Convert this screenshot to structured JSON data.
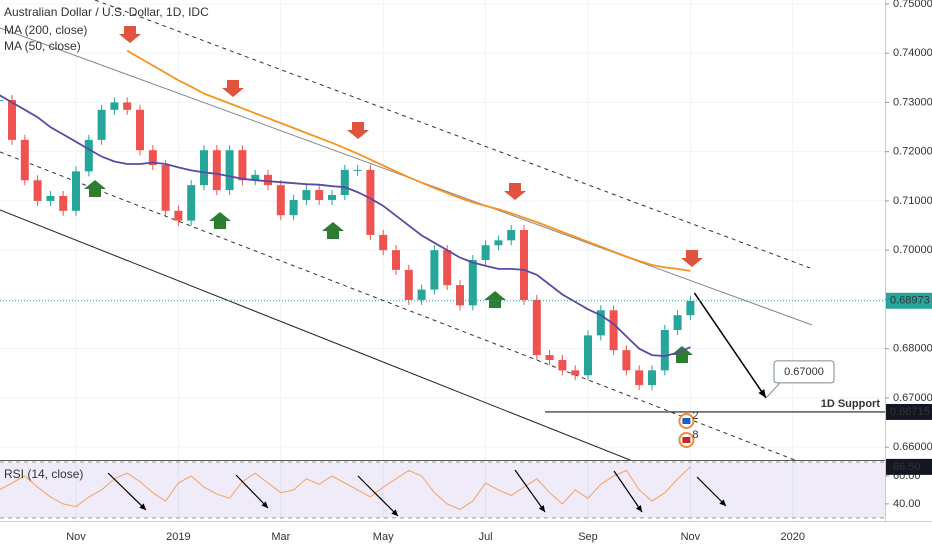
{
  "chart_data": {
    "type": "candlestick",
    "title": "Australian Dollar / U.S. Dollar, 1D, IDC",
    "categories": [
      null,
      null,
      null,
      null,
      null,
      null,
      "Nov",
      null,
      null,
      null,
      null,
      null,
      null,
      null,
      "2019",
      null,
      null,
      null,
      null,
      null,
      null,
      null,
      "Mar",
      null,
      null,
      null,
      null,
      null,
      null,
      null,
      "May",
      null,
      null,
      null,
      null,
      null,
      null,
      null,
      "Jul",
      null,
      null,
      null,
      null,
      null,
      null,
      null,
      "Sep",
      null,
      null,
      null,
      null,
      null,
      null,
      null,
      "Nov",
      null,
      null,
      null,
      null,
      null,
      null,
      null,
      "2020",
      null,
      null,
      null,
      null,
      null,
      null
    ],
    "series": [
      {
        "color": "#26a69a",
        "down_color": "#ef5350",
        "values": [
          0.7305,
          0.7224,
          0.7142,
          0.71,
          0.711,
          0.708,
          0.716,
          0.7224,
          0.7285,
          0.73,
          0.7285,
          0.7203,
          0.7173,
          0.708,
          0.706,
          0.7132,
          0.7203,
          0.7122,
          0.7203,
          0.7142,
          0.7153,
          0.7132,
          0.7071,
          0.7102,
          0.7122,
          0.7102,
          0.7112,
          0.7163,
          0.7163,
          0.7031,
          0.7,
          0.696,
          0.6899,
          0.692,
          0.7,
          0.6929,
          0.6888,
          0.698,
          0.701,
          0.702,
          0.7041,
          0.6899,
          0.6787,
          0.6777,
          0.6756,
          0.6746,
          0.6827,
          0.6878,
          0.6797,
          0.6756,
          0.6726,
          0.6756,
          0.6838,
          0.6868,
          0.6897,
          null,
          null,
          null,
          null,
          null,
          null,
          null,
          null,
          null,
          null,
          null,
          null,
          null,
          null
        ]
      },
      {
        "name": "MA (200, close)",
        "color": "#f7931e",
        "values": [
          null,
          null,
          null,
          null,
          null,
          null,
          null,
          null,
          null,
          null,
          0.7405,
          0.739,
          0.7375,
          0.736,
          0.7345,
          0.7332,
          0.7318,
          0.7308,
          0.7298,
          0.7288,
          0.7278,
          0.7268,
          0.7258,
          0.7248,
          0.7238,
          0.7228,
          0.7218,
          0.7207,
          0.7196,
          0.7184,
          0.7172,
          0.716,
          0.7148,
          0.7137,
          0.7126,
          0.7116,
          0.7106,
          0.7097,
          0.709,
          0.7083,
          0.7075,
          0.7066,
          0.7057,
          0.7047,
          0.7037,
          0.7027,
          0.7017,
          0.7007,
          0.6997,
          0.6987,
          0.6978,
          0.697,
          0.6965,
          0.6962,
          0.6958,
          null,
          null,
          null,
          null,
          null,
          null,
          null,
          null,
          null,
          null,
          null,
          null,
          null,
          null
        ]
      },
      {
        "name": "MA (50, close)",
        "color": "#5b4aa3",
        "values": [
          0.7315,
          0.73,
          0.7285,
          0.727,
          0.725,
          0.7235,
          0.722,
          0.7205,
          0.719,
          0.718,
          0.7175,
          0.7175,
          0.7178,
          0.7175,
          0.7168,
          0.7162,
          0.7158,
          0.7155,
          0.715,
          0.7145,
          0.7142,
          0.714,
          0.7138,
          0.7136,
          0.7134,
          0.7133,
          0.713,
          0.7128,
          0.7118,
          0.7105,
          0.709,
          0.707,
          0.705,
          0.703,
          0.7015,
          0.7,
          0.6985,
          0.6975,
          0.6968,
          0.6962,
          0.6962,
          0.696,
          0.695,
          0.693,
          0.691,
          0.6895,
          0.688,
          0.6868,
          0.685,
          0.6825,
          0.68,
          0.6787,
          0.6785,
          0.6792,
          0.6803,
          null,
          null,
          null,
          null,
          null,
          null,
          null,
          null,
          null,
          null,
          null,
          null,
          null,
          null
        ]
      }
    ],
    "ylim": [
      0.6578,
      0.7508
    ],
    "yticks": [
      {
        "value": 0.66,
        "label": "0.66000"
      },
      {
        "value": 0.67,
        "label": "0.67000"
      },
      {
        "value": 0.68,
        "label": "0.68000"
      },
      {
        "value": 0.69,
        "label": "0.69000"
      },
      {
        "value": 0.7,
        "label": "0.70000"
      },
      {
        "value": 0.71,
        "label": "0.71000"
      },
      {
        "value": 0.72,
        "label": "0.72000"
      },
      {
        "value": 0.73,
        "label": "0.73000"
      },
      {
        "value": 0.74,
        "label": "0.74000"
      },
      {
        "value": 0.75,
        "label": "0.75000"
      }
    ],
    "grid": true,
    "last_price": {
      "value": 0.68973,
      "label": "0.68973",
      "color": "#26a69a"
    },
    "support": {
      "value": 0.66715,
      "label": "0.66715",
      "text": "1D Support"
    },
    "target": {
      "value": 0.67,
      "label": "0.67000"
    },
    "events": [
      "2",
      "8"
    ],
    "rsi": {
      "title": "RSI (14, close)",
      "color": "#f4a261",
      "values": [
        50,
        55,
        60,
        52,
        45,
        40,
        38,
        45,
        50,
        58,
        62,
        56,
        48,
        42,
        55,
        60,
        52,
        47,
        44,
        56,
        62,
        55,
        48,
        50,
        58,
        54,
        60,
        55,
        50,
        45,
        52,
        58,
        64,
        60,
        48,
        40,
        36,
        42,
        55,
        50,
        46,
        52,
        58,
        48,
        40,
        50,
        44,
        54,
        60,
        64,
        50,
        42,
        48,
        58,
        66.5,
        null,
        null,
        null,
        null,
        null,
        null,
        null,
        null,
        null,
        null,
        null,
        null,
        null,
        null
      ],
      "ylim": [
        28.5,
        70.7
      ],
      "yticks": [
        {
          "value": 40,
          "label": "40.00"
        },
        {
          "value": 60,
          "label": "60.00"
        }
      ],
      "bands": [
        30,
        70
      ],
      "last": {
        "value": 66.5,
        "label": "66.50"
      }
    }
  }
}
